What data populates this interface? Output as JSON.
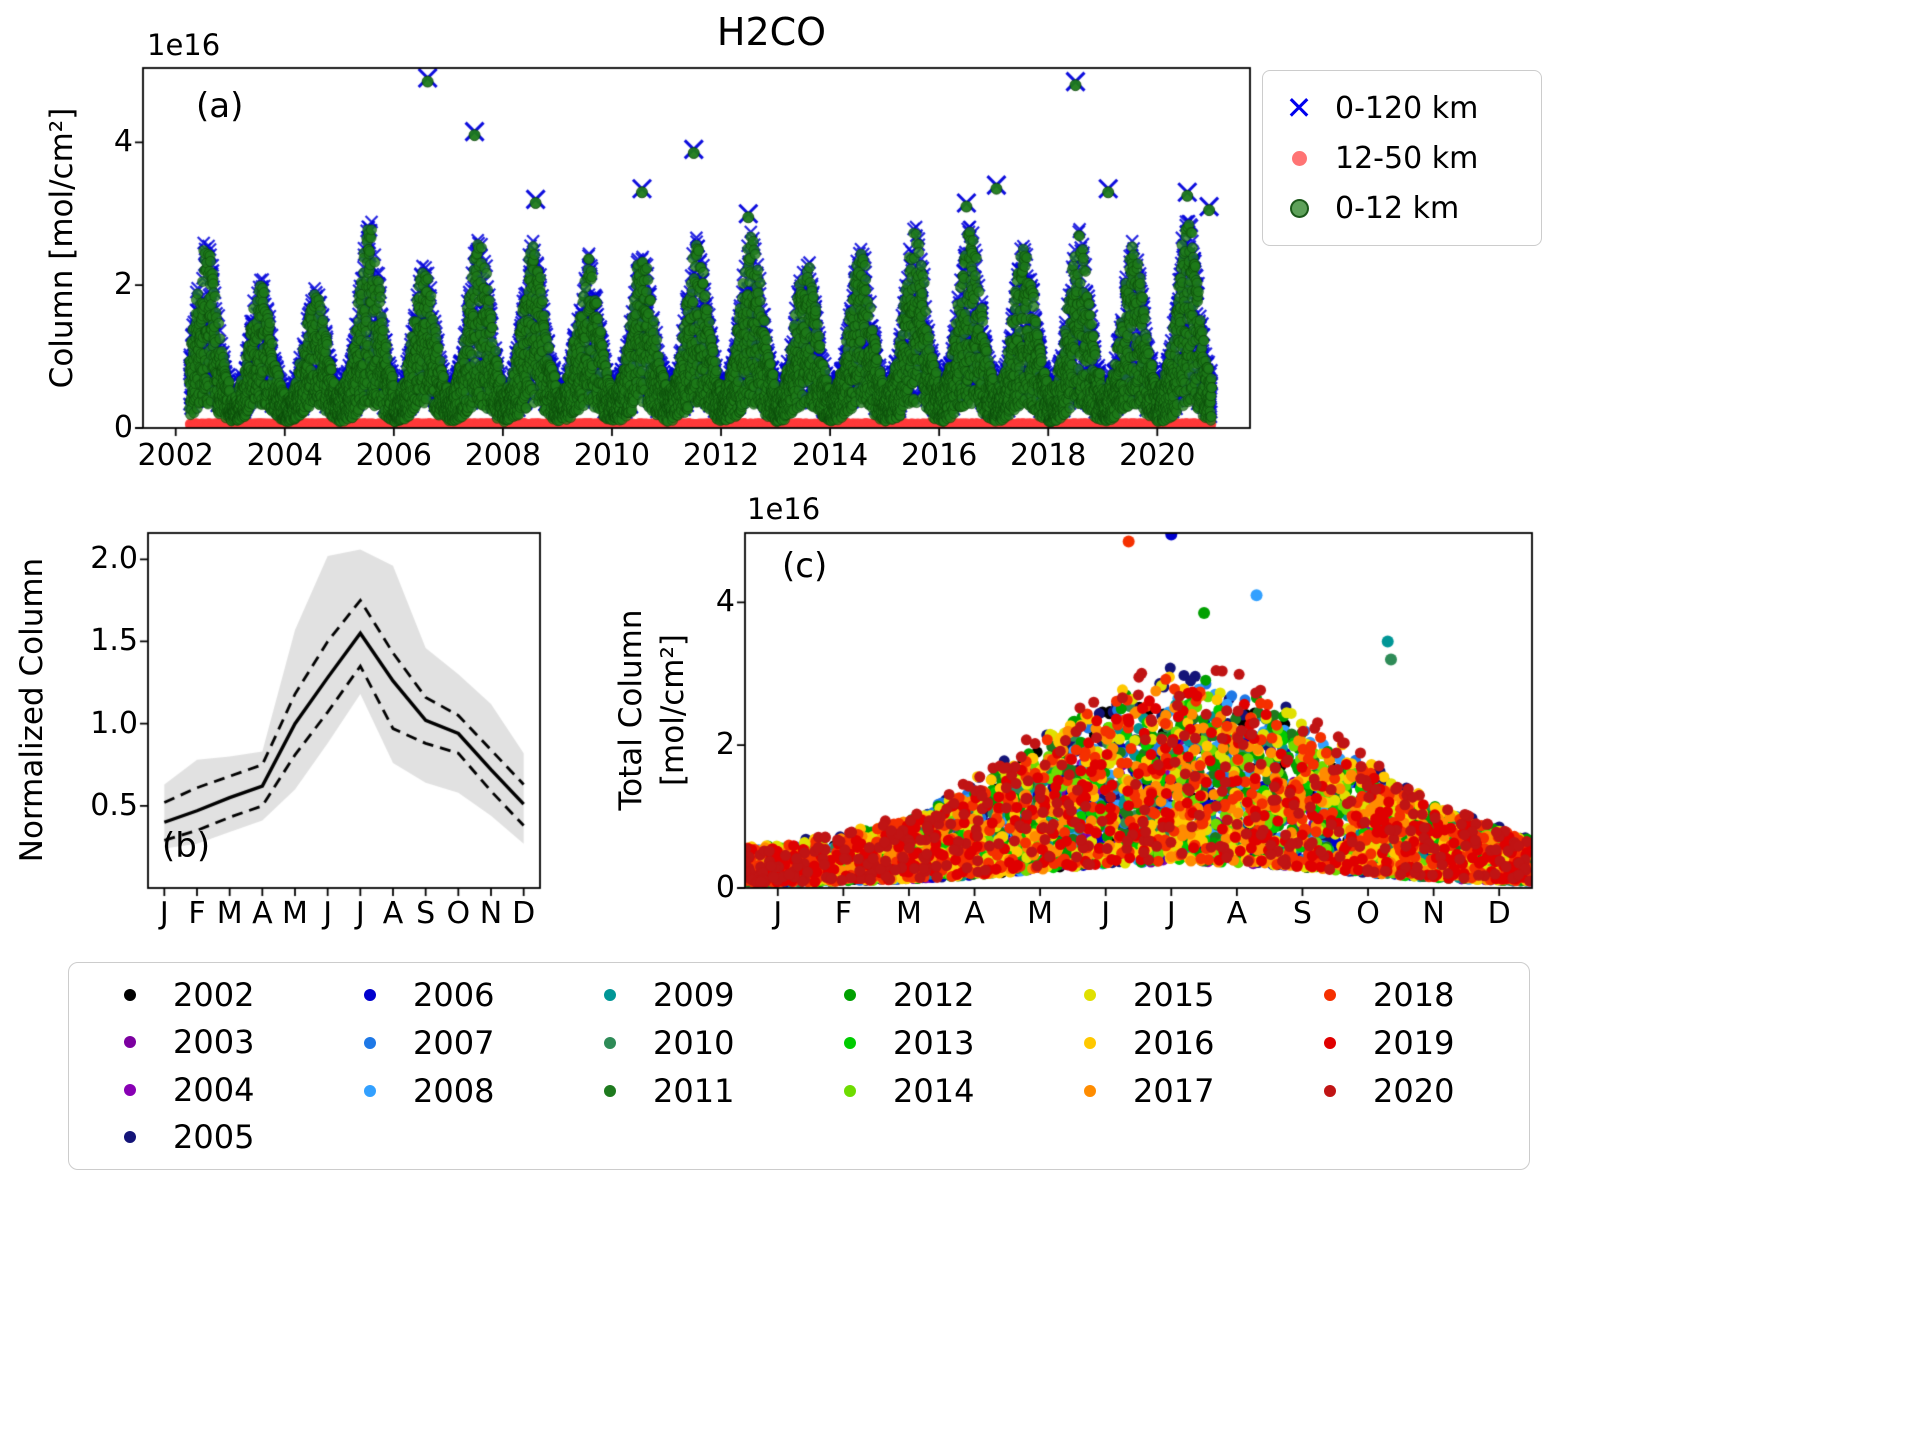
{
  "figure": {
    "title": "H2CO",
    "background": "#ffffff"
  },
  "chart_data": [
    {
      "id": "a",
      "type": "scatter",
      "panel_label": "(a)",
      "title": "H2CO",
      "offset_text": "1e16",
      "ylabel": "Column [mol/cm²]",
      "xlabel": "",
      "xlim": [
        2001.4,
        2021.7
      ],
      "ylim": [
        0,
        5.04
      ],
      "xticks": [
        2002,
        2004,
        2006,
        2008,
        2010,
        2012,
        2014,
        2016,
        2018,
        2020
      ],
      "yticks": [
        0,
        2,
        4
      ],
      "grid": false,
      "legend_position": "outside-upper-right",
      "series": [
        {
          "name": "0-120 km",
          "marker": "x",
          "color": "#0000ee"
        },
        {
          "name": "12-50 km",
          "marker": "o",
          "color": "#ff4646"
        },
        {
          "name": "0-12 km",
          "marker": "o",
          "color": "#288223",
          "edge_color": "#0a460a"
        }
      ],
      "time_range": [
        2002.25,
        2021.0
      ],
      "seasonal_peak_month": 7.2,
      "seasonal_width_months": 2.3,
      "envelope": {
        "winter_floor": 0.08,
        "winter_top": 0.5,
        "summer_span": 2.2,
        "strat_level": 0.05
      },
      "year_peak_factors": {
        "2002": 0.95,
        "2003": 0.75,
        "2004": 0.72,
        "2005": 1.05,
        "2006": 0.82,
        "2007": 1.0,
        "2008": 0.95,
        "2009": 0.88,
        "2010": 0.92,
        "2011": 0.95,
        "2012": 1.0,
        "2013": 0.88,
        "2014": 0.92,
        "2015": 1.02,
        "2016": 1.05,
        "2017": 0.95,
        "2018": 1.0,
        "2019": 0.95,
        "2020": 1.08
      },
      "notable_outliers": [
        {
          "t": 2006.62,
          "v": 4.85
        },
        {
          "t": 2007.48,
          "v": 4.1
        },
        {
          "t": 2008.6,
          "v": 3.15
        },
        {
          "t": 2010.55,
          "v": 3.3
        },
        {
          "t": 2011.5,
          "v": 3.85
        },
        {
          "t": 2012.5,
          "v": 2.95
        },
        {
          "t": 2016.5,
          "v": 3.1
        },
        {
          "t": 2017.05,
          "v": 3.35
        },
        {
          "t": 2018.5,
          "v": 4.8
        },
        {
          "t": 2019.1,
          "v": 3.3
        },
        {
          "t": 2020.55,
          "v": 3.25
        },
        {
          "t": 2020.95,
          "v": 3.05
        }
      ]
    },
    {
      "id": "b",
      "type": "line",
      "panel_label": "(b)",
      "ylabel": "Normalized Column",
      "categories": [
        "J",
        "F",
        "M",
        "A",
        "M",
        "J",
        "J",
        "A",
        "S",
        "O",
        "N",
        "D"
      ],
      "yticks": [
        "0.5",
        "1.0",
        "1.5",
        "2.0"
      ],
      "ytick_values": [
        0.5,
        1.0,
        1.5,
        2.0
      ],
      "ylim": [
        0,
        2.16
      ],
      "grid": false,
      "series": [
        {
          "name": "mean",
          "style": "solid",
          "color": "#000000",
          "values": [
            0.4,
            0.47,
            0.55,
            0.62,
            1.0,
            1.28,
            1.55,
            1.26,
            1.02,
            0.94,
            0.72,
            0.51
          ]
        },
        {
          "name": "upper-dashed",
          "style": "dashed",
          "color": "#000000",
          "values": [
            0.52,
            0.61,
            0.68,
            0.75,
            1.18,
            1.5,
            1.75,
            1.43,
            1.16,
            1.05,
            0.84,
            0.63
          ]
        },
        {
          "name": "lower-dashed",
          "style": "dashed",
          "color": "#000000",
          "values": [
            0.29,
            0.35,
            0.43,
            0.5,
            0.81,
            1.07,
            1.35,
            0.97,
            0.88,
            0.82,
            0.59,
            0.38
          ]
        }
      ],
      "band": {
        "color": "#d3d3d3",
        "upper": [
          0.63,
          0.78,
          0.8,
          0.83,
          1.57,
          2.02,
          2.06,
          1.96,
          1.46,
          1.3,
          1.12,
          0.82
        ],
        "lower": [
          0.24,
          0.27,
          0.34,
          0.41,
          0.6,
          0.88,
          1.18,
          0.76,
          0.64,
          0.58,
          0.44,
          0.27
        ]
      }
    },
    {
      "id": "c",
      "type": "scatter",
      "panel_label": "(c)",
      "offset_text": "1e16",
      "ylabel_line1": "Total Column",
      "ylabel_line2": "[mol/cm²]",
      "categories": [
        "J",
        "F",
        "M",
        "A",
        "M",
        "J",
        "J",
        "A",
        "S",
        "O",
        "N",
        "D"
      ],
      "yticks": [
        "0",
        "2",
        "4"
      ],
      "ytick_values": [
        0,
        2,
        4
      ],
      "ylim": [
        0,
        4.97
      ],
      "xlim": [
        0.5,
        12.5
      ],
      "grid": false,
      "seasonal_peak_month": 7.2,
      "seasonal_width_months": 2.3,
      "envelope": {
        "winter_floor": 0.07,
        "winter_top": 0.55,
        "summer_span": 2.4
      },
      "points_per_year": 300,
      "years": [
        {
          "year": "2002",
          "color": "#000000"
        },
        {
          "year": "2003",
          "color": "#7c00a0"
        },
        {
          "year": "2004",
          "color": "#8800b4"
        },
        {
          "year": "2005",
          "color": "#141478"
        },
        {
          "year": "2006",
          "color": "#0000cd"
        },
        {
          "year": "2007",
          "color": "#1e78e6"
        },
        {
          "year": "2008",
          "color": "#32a0ff"
        },
        {
          "year": "2009",
          "color": "#009696"
        },
        {
          "year": "2010",
          "color": "#2e8b57"
        },
        {
          "year": "2011",
          "color": "#1e7a1e"
        },
        {
          "year": "2012",
          "color": "#00a000"
        },
        {
          "year": "2013",
          "color": "#00cc00"
        },
        {
          "year": "2014",
          "color": "#6edc00"
        },
        {
          "year": "2015",
          "color": "#e0e000"
        },
        {
          "year": "2016",
          "color": "#ffc800"
        },
        {
          "year": "2017",
          "color": "#ff8c00"
        },
        {
          "year": "2018",
          "color": "#f53000"
        },
        {
          "year": "2019",
          "color": "#e00000"
        },
        {
          "year": "2020",
          "color": "#c01414"
        }
      ],
      "notable_outliers": [
        {
          "month": 6.35,
          "value": 4.85,
          "year": "2018"
        },
        {
          "month": 7.0,
          "value": 4.95,
          "year": "2006"
        },
        {
          "month": 8.3,
          "value": 4.1,
          "year": "2008"
        },
        {
          "month": 7.5,
          "value": 3.85,
          "year": "2012"
        },
        {
          "month": 10.3,
          "value": 3.45,
          "year": "2009"
        },
        {
          "month": 10.35,
          "value": 3.2,
          "year": "2010"
        }
      ]
    }
  ]
}
